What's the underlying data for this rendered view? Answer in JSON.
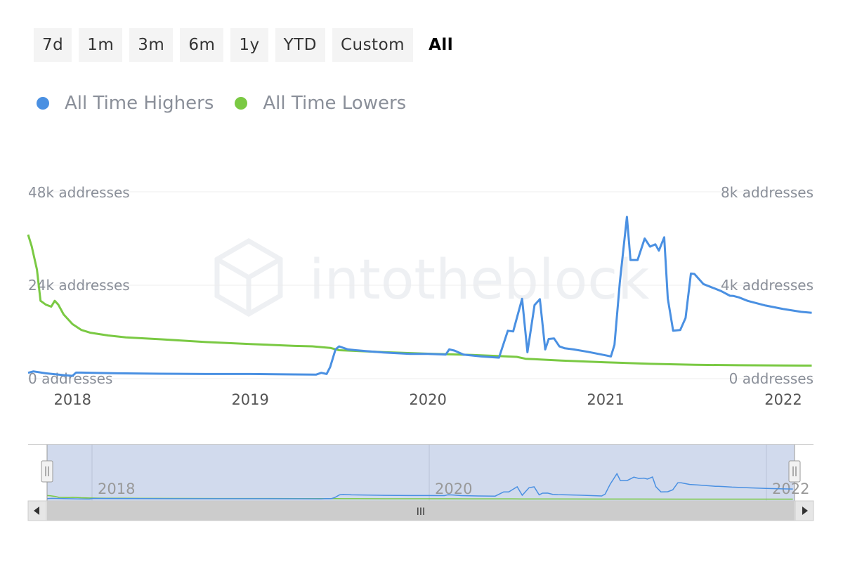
{
  "range_buttons": [
    {
      "label": "7d",
      "active": false
    },
    {
      "label": "1m",
      "active": false
    },
    {
      "label": "3m",
      "active": false
    },
    {
      "label": "6m",
      "active": false
    },
    {
      "label": "1y",
      "active": false
    },
    {
      "label": "YTD",
      "active": false
    },
    {
      "label": "Custom",
      "active": false
    },
    {
      "label": "All",
      "active": true
    }
  ],
  "watermark": "intotheblock",
  "navigator": {
    "labels": [
      "2018",
      "2020",
      "2022"
    ],
    "scroll_label": "III"
  },
  "colors": {
    "highers": "#4a90e2",
    "lowers": "#7ac943",
    "grid": "#ececec"
  },
  "chart_data": {
    "type": "line",
    "title": "",
    "legend_position": "top-left",
    "grid": true,
    "x_range": [
      2017.75,
      2022.17
    ],
    "x_ticks": [
      "2018",
      "2019",
      "2020",
      "2021",
      "2022"
    ],
    "left_axis": {
      "ticks": [
        "0 addresses",
        "24k addresses",
        "48k addresses"
      ],
      "range": [
        0,
        48000
      ]
    },
    "right_axis": {
      "ticks": [
        "0 addresses",
        "4k addresses",
        "8k addresses"
      ],
      "range": [
        0,
        8000
      ]
    },
    "series": [
      {
        "name": "All Time Highers",
        "color": "#4a90e2",
        "axis": "right",
        "x": [
          2017.75,
          2017.78,
          2017.85,
          2017.95,
          2018.0,
          2018.02,
          2018.05,
          2018.25,
          2018.5,
          2018.75,
          2019.0,
          2019.25,
          2019.37,
          2019.4,
          2019.43,
          2019.45,
          2019.48,
          2019.5,
          2019.55,
          2019.65,
          2019.75,
          2019.9,
          2020.0,
          2020.1,
          2020.12,
          2020.15,
          2020.2,
          2020.3,
          2020.4,
          2020.45,
          2020.48,
          2020.53,
          2020.56,
          2020.6,
          2020.63,
          2020.66,
          2020.68,
          2020.71,
          2020.74,
          2020.77,
          2020.82,
          2020.9,
          2021.0,
          2021.03,
          2021.05,
          2021.08,
          2021.12,
          2021.14,
          2021.18,
          2021.22,
          2021.25,
          2021.28,
          2021.3,
          2021.33,
          2021.35,
          2021.38,
          2021.42,
          2021.45,
          2021.48,
          2021.5,
          2021.55,
          2021.6,
          2021.65,
          2021.7,
          2021.72,
          2021.75,
          2021.8,
          2021.9,
          2022.0,
          2022.1,
          2022.16
        ],
        "values": [
          250,
          310,
          230,
          150,
          120,
          260,
          260,
          230,
          210,
          200,
          200,
          180,
          170,
          250,
          200,
          500,
          1250,
          1380,
          1250,
          1180,
          1120,
          1060,
          1060,
          1030,
          1250,
          1200,
          1030,
          950,
          900,
          2050,
          2020,
          3420,
          1130,
          3150,
          3400,
          1250,
          1700,
          1720,
          1380,
          1300,
          1250,
          1150,
          1000,
          950,
          1450,
          4120,
          6930,
          5080,
          5080,
          6000,
          5650,
          5750,
          5480,
          6050,
          3430,
          2050,
          2080,
          2600,
          4500,
          4480,
          4050,
          3900,
          3750,
          3550,
          3540,
          3480,
          3330,
          3130,
          2980,
          2860,
          2820
        ]
      },
      {
        "name": "All Time Lowers",
        "color": "#7ac943",
        "axis": "left",
        "x": [
          2017.75,
          2017.77,
          2017.8,
          2017.82,
          2017.85,
          2017.88,
          2017.9,
          2017.92,
          2017.95,
          2018.0,
          2018.05,
          2018.1,
          2018.2,
          2018.3,
          2018.5,
          2018.75,
          2019.0,
          2019.25,
          2019.35,
          2019.45,
          2019.5,
          2019.75,
          2020.0,
          2020.25,
          2020.4,
          2020.5,
          2020.55,
          2020.75,
          2021.0,
          2021.25,
          2021.5,
          2021.75,
          2022.0,
          2022.16
        ],
        "values": [
          37000,
          34000,
          28000,
          20000,
          19000,
          18500,
          20000,
          19000,
          16500,
          14000,
          12500,
          11800,
          11100,
          10600,
          10100,
          9400,
          8900,
          8400,
          8300,
          7900,
          7300,
          6800,
          6400,
          6100,
          5800,
          5600,
          5100,
          4650,
          4200,
          3800,
          3550,
          3450,
          3400,
          3350
        ]
      }
    ]
  }
}
